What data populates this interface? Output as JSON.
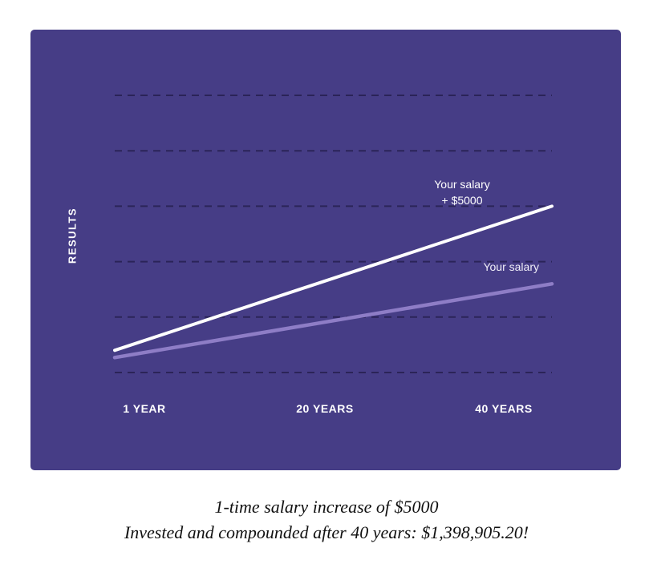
{
  "colors": {
    "panel_bg": "#463d86",
    "gridline": "#2b2458",
    "series_primary": "#ffffff",
    "series_secondary": "#8e7dc6"
  },
  "chart_data": {
    "type": "line",
    "title": "",
    "ylabel": "RESULTS",
    "xlabel": "",
    "x_ticks": [
      "1 YEAR",
      "20 YEARS",
      "40 YEARS"
    ],
    "x": [
      1,
      40
    ],
    "xlim": [
      1,
      40
    ],
    "ylim": [
      0,
      5
    ],
    "y_ticks_visible": false,
    "grid": "horizontal dashed",
    "gridline_count": 6,
    "series": [
      {
        "name": "Your salary\n+ $5000",
        "color": "#ffffff",
        "values": [
          0.4,
          3.0
        ]
      },
      {
        "name": "Your salary",
        "color": "#8e7dc6",
        "values": [
          0.27,
          1.6
        ]
      }
    ]
  },
  "caption": {
    "line1": "1-time salary increase of $5000",
    "line2": "Invested and compounded after 40 years: $1,398,905.20!"
  }
}
